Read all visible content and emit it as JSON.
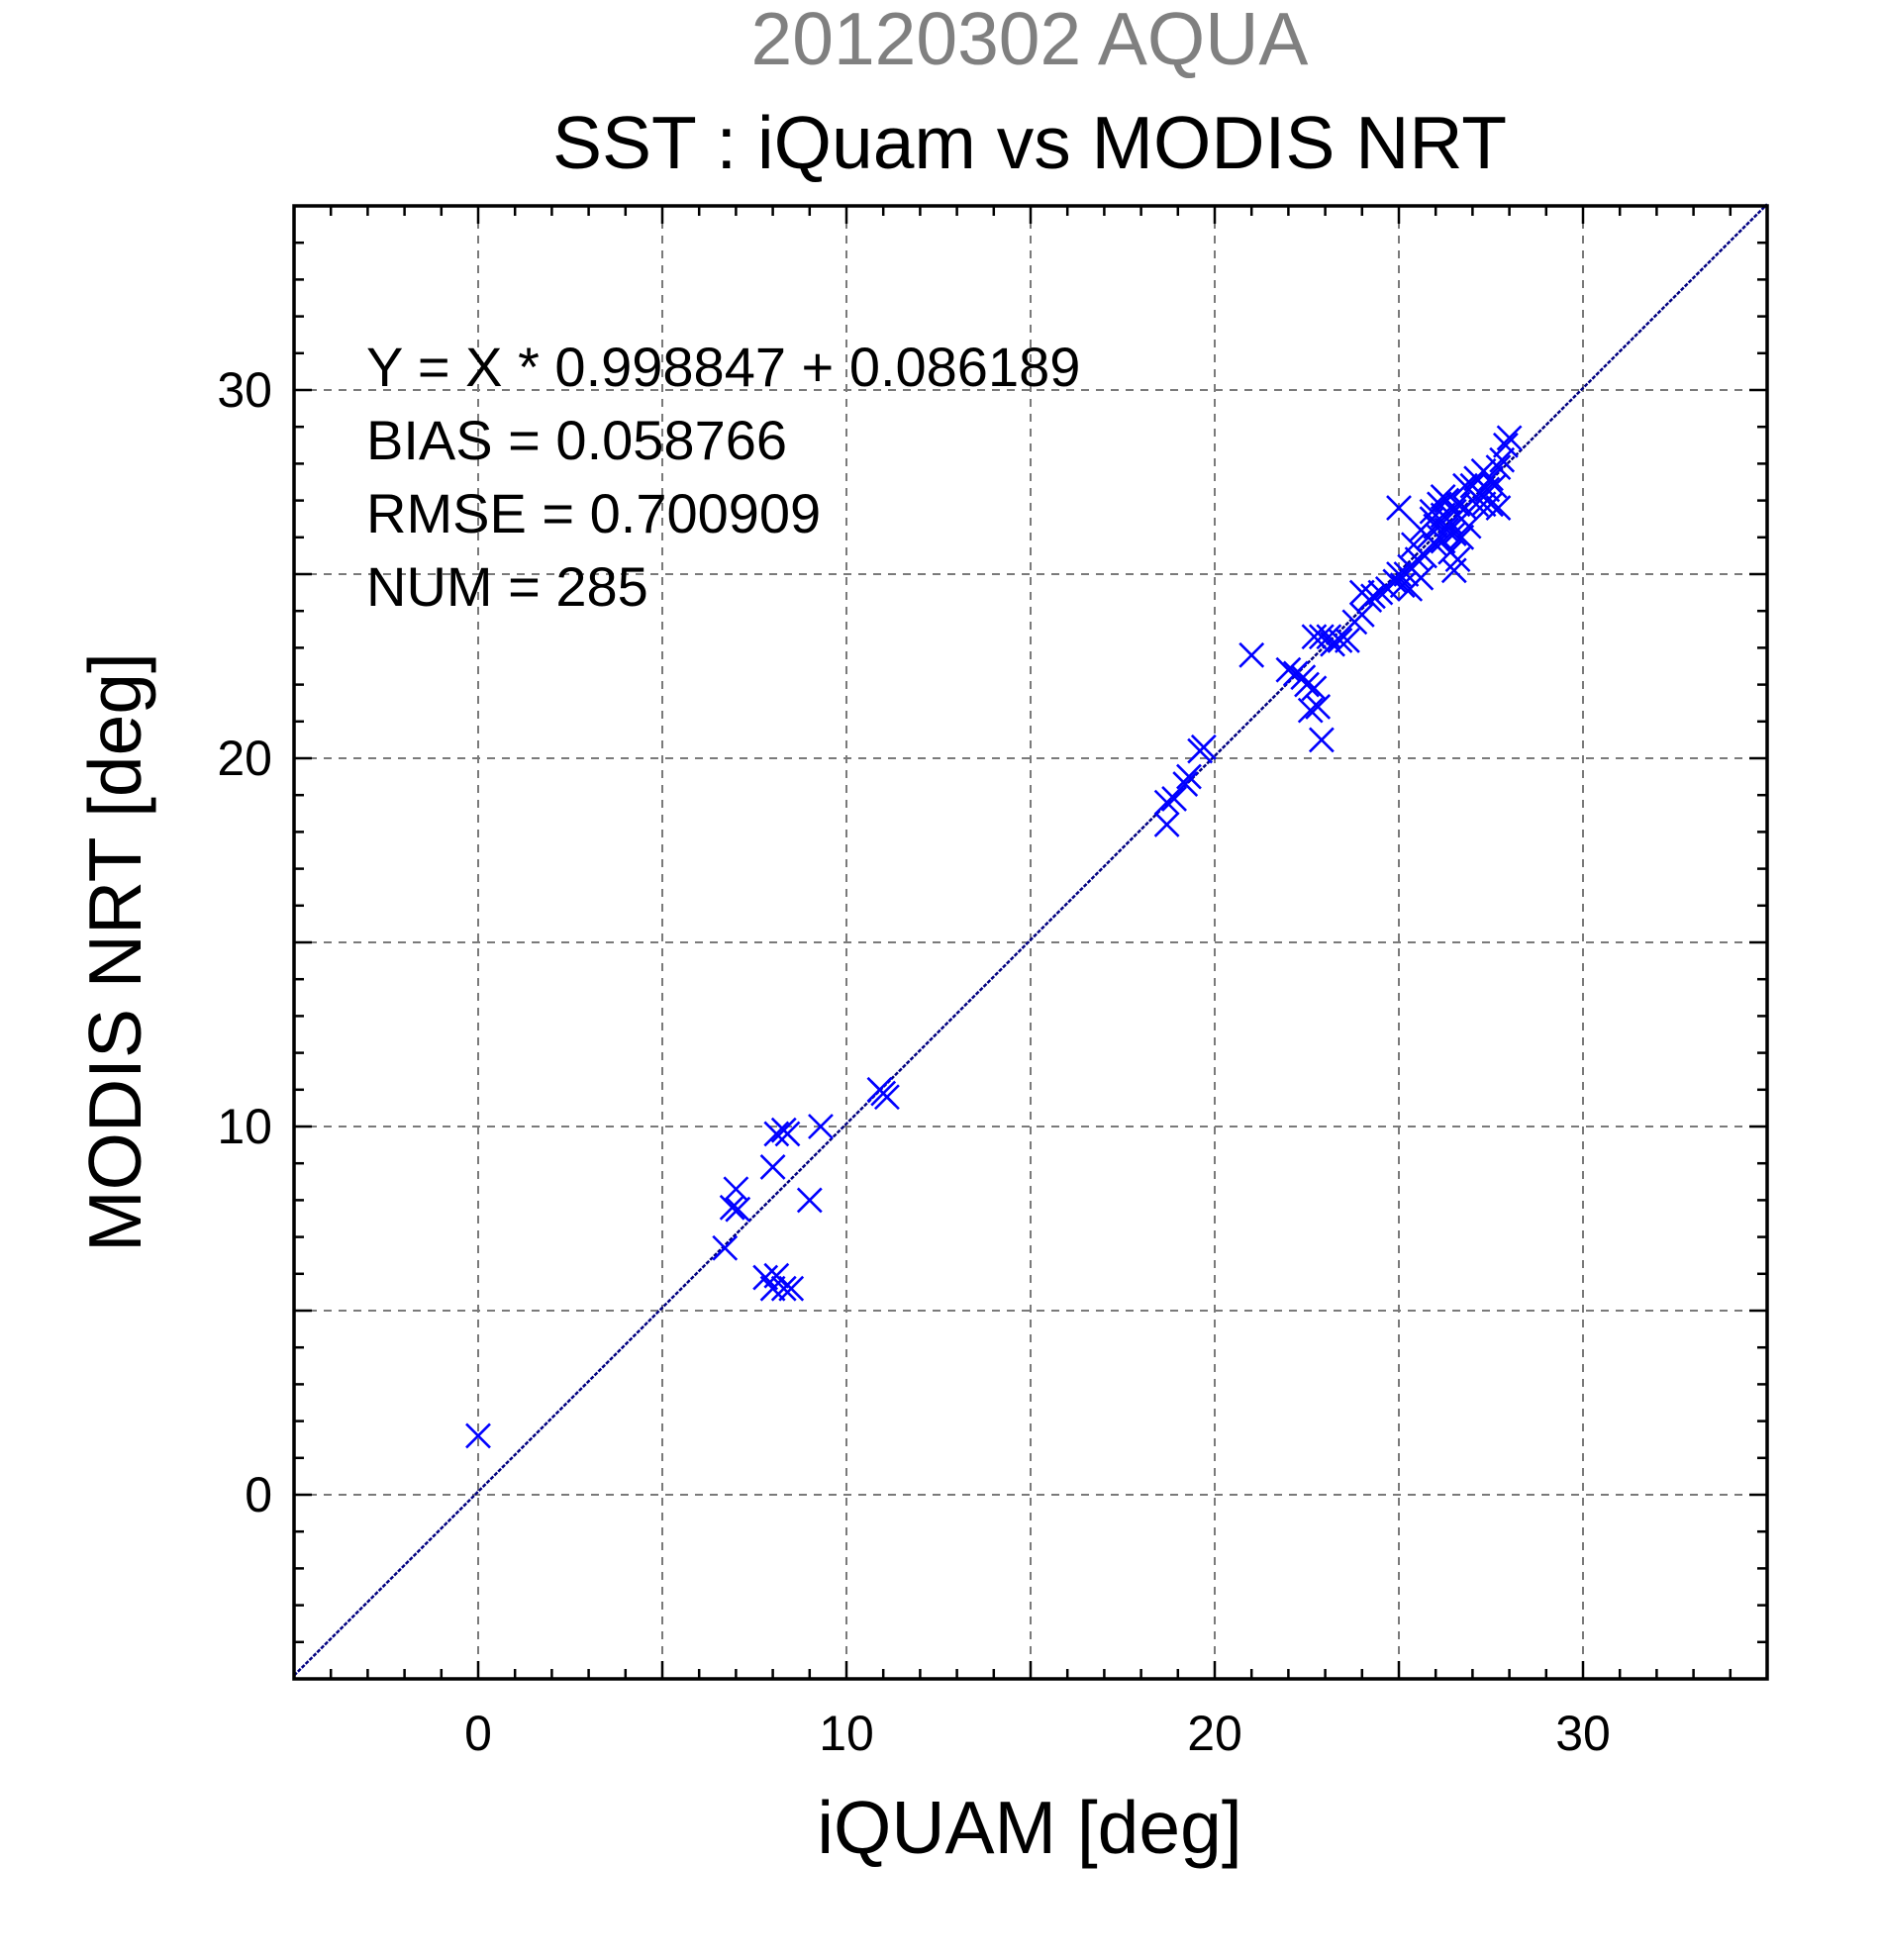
{
  "chart_data": {
    "type": "scatter",
    "suptitle": "20120302 AQUA",
    "title": "SST : iQuam vs MODIS NRT",
    "xlabel": "iQUAM [deg]",
    "ylabel": "MODIS NRT [deg]",
    "xlim": [
      -5,
      35
    ],
    "ylim": [
      -5,
      35
    ],
    "major_ticks": [
      0,
      10,
      20,
      30
    ],
    "grid_step": 5,
    "minor_step": 1,
    "grid": true,
    "colors": {
      "marker": "#0000ff",
      "fit_line": "#000080",
      "suptitle": "#808080"
    },
    "annotations": [
      "Y = X * 0.998847 + 0.086189",
      "BIAS = 0.058766",
      "RMSE = 0.700909",
      "NUM = 285"
    ],
    "fit": {
      "slope": 0.998847,
      "intercept": 0.086189
    },
    "series": [
      {
        "marker": "x",
        "points": [
          [
            0.0,
            1.6
          ],
          [
            6.7,
            6.7
          ],
          [
            6.9,
            7.8
          ],
          [
            7.0,
            8.3
          ],
          [
            7.05,
            7.75
          ],
          [
            7.8,
            5.9
          ],
          [
            8.0,
            5.6
          ],
          [
            8.1,
            5.95
          ],
          [
            8.3,
            5.6
          ],
          [
            8.5,
            5.6
          ],
          [
            8.0,
            8.9
          ],
          [
            8.1,
            9.8
          ],
          [
            8.3,
            9.9
          ],
          [
            8.4,
            9.8
          ],
          [
            9.0,
            8.0
          ],
          [
            9.3,
            10.0
          ],
          [
            10.9,
            11.0
          ],
          [
            11.0,
            10.9
          ],
          [
            11.1,
            10.8
          ],
          [
            18.7,
            18.2
          ],
          [
            18.7,
            18.8
          ],
          [
            18.9,
            18.9
          ],
          [
            19.2,
            19.3
          ],
          [
            19.3,
            19.5
          ],
          [
            19.6,
            20.2
          ],
          [
            19.7,
            20.3
          ],
          [
            21.0,
            22.8
          ],
          [
            22.0,
            22.4
          ],
          [
            22.2,
            22.3
          ],
          [
            22.4,
            22.2
          ],
          [
            22.5,
            22.0
          ],
          [
            22.6,
            21.3
          ],
          [
            22.7,
            21.9
          ],
          [
            22.8,
            21.4
          ],
          [
            22.9,
            20.5
          ],
          [
            22.7,
            23.3
          ],
          [
            22.9,
            23.3
          ],
          [
            23.1,
            23.3
          ],
          [
            23.2,
            23.1
          ],
          [
            23.4,
            23.2
          ],
          [
            23.6,
            23.2
          ],
          [
            23.8,
            23.7
          ],
          [
            24.0,
            23.9
          ],
          [
            24.0,
            24.5
          ],
          [
            24.2,
            24.3
          ],
          [
            24.3,
            24.4
          ],
          [
            24.5,
            24.5
          ],
          [
            24.7,
            24.6
          ],
          [
            24.9,
            24.8
          ],
          [
            25.0,
            25.0
          ],
          [
            25.1,
            24.7
          ],
          [
            25.2,
            25.0
          ],
          [
            25.3,
            24.6
          ],
          [
            25.3,
            25.2
          ],
          [
            25.5,
            25.4
          ],
          [
            25.6,
            24.9
          ],
          [
            25.0,
            26.8
          ],
          [
            25.4,
            25.8
          ],
          [
            25.6,
            26.2
          ],
          [
            25.7,
            25.5
          ],
          [
            25.8,
            26.0
          ],
          [
            25.9,
            26.5
          ],
          [
            26.0,
            25.8
          ],
          [
            26.0,
            26.3
          ],
          [
            26.1,
            26.9
          ],
          [
            26.1,
            26.0
          ],
          [
            26.2,
            26.6
          ],
          [
            26.2,
            25.9
          ],
          [
            26.3,
            26.2
          ],
          [
            26.3,
            27.0
          ],
          [
            26.4,
            26.4
          ],
          [
            26.4,
            25.6
          ],
          [
            26.5,
            26.7
          ],
          [
            26.5,
            26.1
          ],
          [
            26.6,
            25.4
          ],
          [
            26.6,
            26.9
          ],
          [
            26.7,
            26.5
          ],
          [
            26.7,
            26.0
          ],
          [
            26.8,
            26.8
          ],
          [
            26.9,
            26.3
          ],
          [
            27.0,
            27.4
          ],
          [
            27.1,
            26.9
          ],
          [
            27.1,
            27.6
          ],
          [
            27.2,
            27.2
          ],
          [
            27.3,
            27.8
          ],
          [
            27.3,
            26.9
          ],
          [
            27.4,
            27.3
          ],
          [
            27.5,
            27.6
          ],
          [
            27.6,
            27.4
          ],
          [
            27.7,
            27.9
          ],
          [
            27.8,
            28.1
          ],
          [
            27.9,
            28.5
          ],
          [
            28.0,
            28.7
          ],
          [
            27.5,
            26.9
          ],
          [
            27.7,
            26.8
          ],
          [
            26.5,
            25.1
          ],
          [
            25.9,
            26.7
          ],
          [
            26.2,
            27.1
          ],
          [
            26.8,
            27.4
          ]
        ]
      }
    ]
  }
}
